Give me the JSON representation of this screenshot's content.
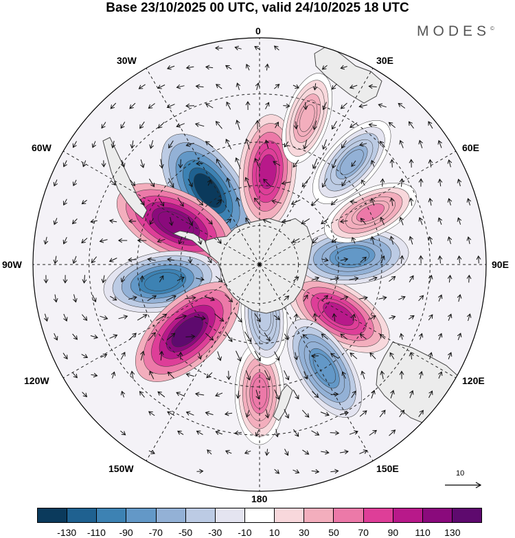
{
  "title": "Base 23/10/2025 00 UTC, valid 24/10/2025 18 UTC",
  "brand": "MODES",
  "brand_mark": "©",
  "longitude_labels": {
    "lon_0": "0",
    "lon_30e": "30E",
    "lon_60e": "60E",
    "lon_90e": "90E",
    "lon_120e": "120E",
    "lon_150e": "150E",
    "lon_180": "180",
    "lon_150w": "150W",
    "lon_120w": "120W",
    "lon_90w": "90W",
    "lon_60w": "60W",
    "lon_30w": "30W"
  },
  "reference_vector": {
    "value": "10"
  },
  "colorbar": {
    "colors": [
      "#0b3a5c",
      "#1f6190",
      "#3d82b3",
      "#6398c7",
      "#93b1d6",
      "#bccbe4",
      "#e4e4f0",
      "#ffffff",
      "#f8d8dc",
      "#f3aebd",
      "#ec79a8",
      "#de3e98",
      "#b8198a",
      "#8a0a7c",
      "#5e0a6e"
    ],
    "tick_labels": [
      "-130",
      "-110",
      "-90",
      "-70",
      "-50",
      "-30",
      "-10",
      "10",
      "30",
      "50",
      "70",
      "90",
      "110",
      "130"
    ]
  },
  "map_data": {
    "projection": "south polar stereographic",
    "field": "anomaly",
    "centers": [
      {
        "name": "neg-30w-60w",
        "lon": -35,
        "lat": -56,
        "value": -125
      },
      {
        "name": "pos-0",
        "lon": 5,
        "lat": -55,
        "value": 85
      },
      {
        "name": "pos-60w-75w",
        "lon": -64,
        "lat": -55,
        "value": 118
      },
      {
        "name": "neg-90w",
        "lon": -100,
        "lat": -53,
        "value": -95
      },
      {
        "name": "pos-130w",
        "lon": -133,
        "lat": -53,
        "value": 120
      },
      {
        "name": "pos-120e",
        "lon": 122,
        "lat": -55,
        "value": 85
      },
      {
        "name": "neg-90e",
        "lon": 85,
        "lat": -55,
        "value": -80
      },
      {
        "name": "pos-70e",
        "lon": 65,
        "lat": -45,
        "value": 45
      },
      {
        "name": "neg-45e",
        "lon": 42,
        "lat": -40,
        "value": -55
      },
      {
        "name": "neg-150e",
        "lon": 148,
        "lat": -45,
        "value": -75
      },
      {
        "name": "pos-180",
        "lon": 180,
        "lat": -43,
        "value": 55
      },
      {
        "name": "neg-170e-70s",
        "lon": 175,
        "lat": -70,
        "value": -40
      },
      {
        "name": "pos-15e-35s",
        "lon": 18,
        "lat": -35,
        "value": 30
      }
    ]
  }
}
